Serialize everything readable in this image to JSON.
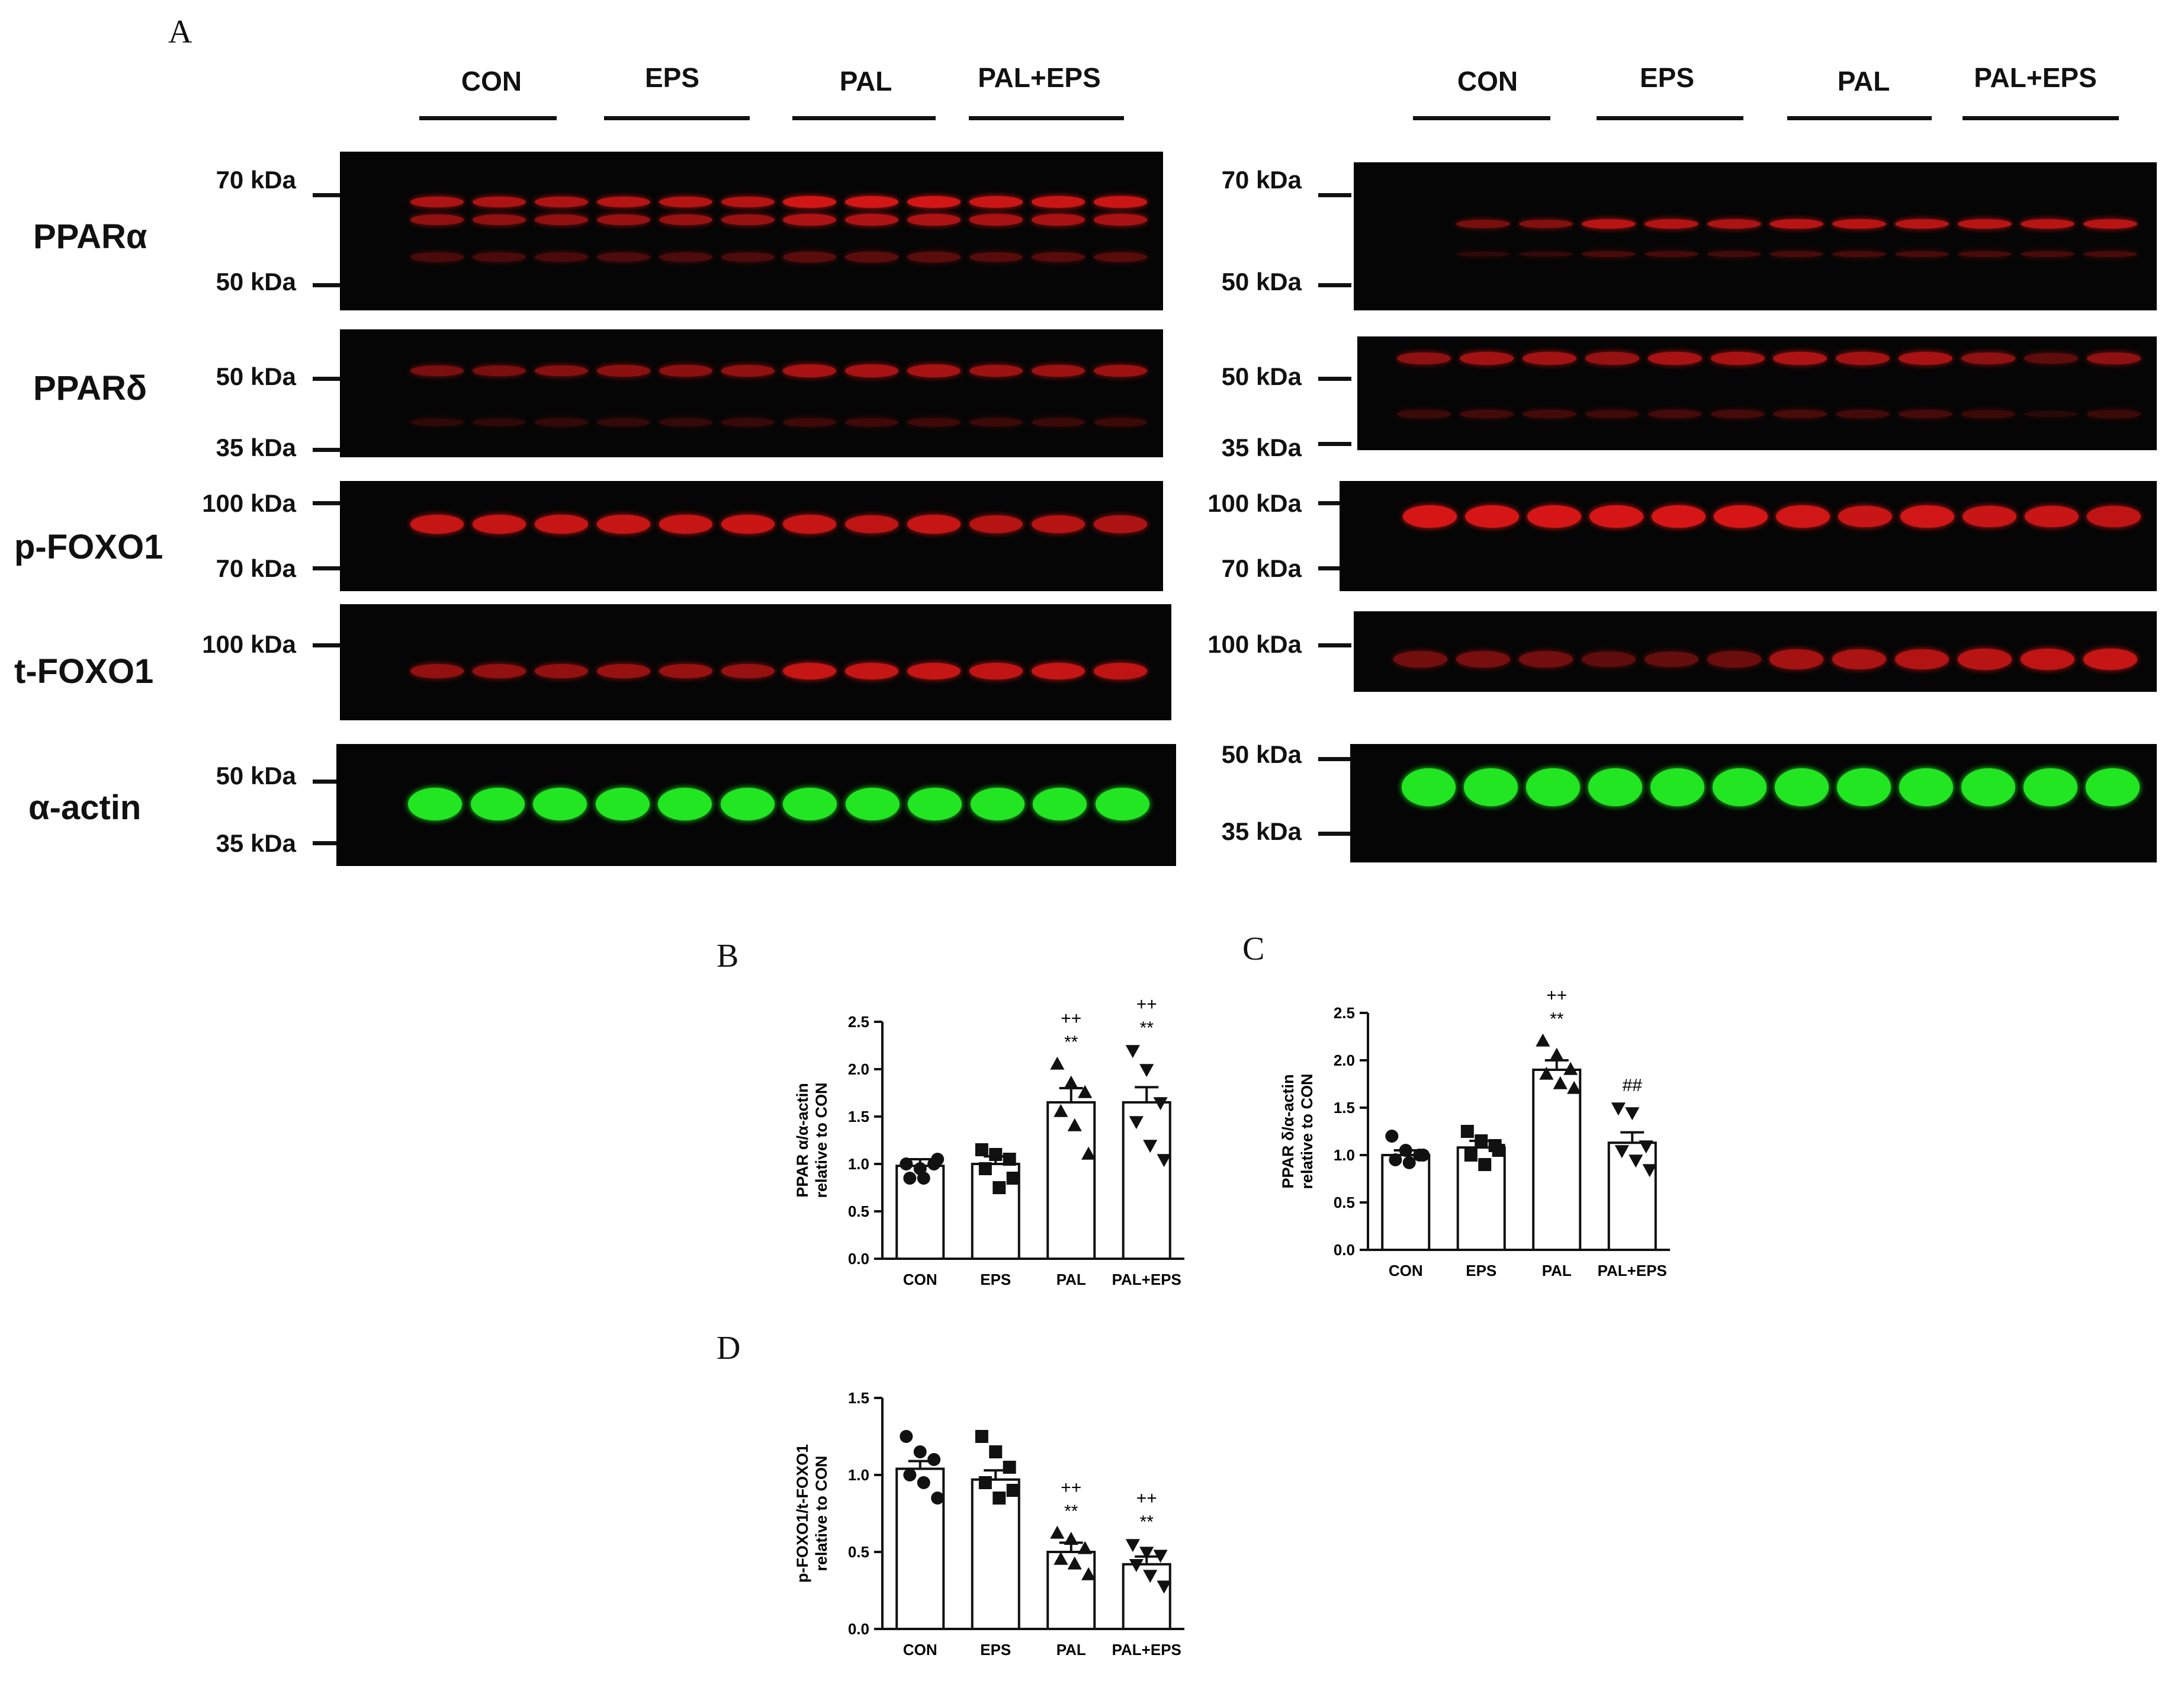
{
  "figure": {
    "panel_labels": {
      "a": "A",
      "b": "B",
      "c": "C",
      "d": "D"
    },
    "groups": [
      "CON",
      "EPS",
      "PAL",
      "PAL+EPS"
    ],
    "blot_rows": [
      {
        "protein": "PPARα",
        "markers": [
          "70 kDa",
          "50 kDa"
        ],
        "color": "#ff1a1a"
      },
      {
        "protein": "PPARδ",
        "markers": [
          "50 kDa",
          "35 kDa"
        ],
        "color": "#ff1a1a"
      },
      {
        "protein": "p-FOXO1",
        "markers": [
          "100 kDa",
          "70 kDa"
        ],
        "color": "#ff1a1a"
      },
      {
        "protein": "t-FOXO1",
        "markers": [
          "100 kDa"
        ],
        "color": "#ff1a1a"
      },
      {
        "protein": "α-actin",
        "markers": [
          "50 kDa",
          "35 kDa"
        ],
        "color": "#22e622"
      }
    ]
  },
  "chart_data": [
    {
      "panel": "B",
      "type": "bar",
      "categories": [
        "CON",
        "EPS",
        "PAL",
        "PAL+EPS"
      ],
      "values": [
        0.98,
        1.0,
        1.65,
        1.65
      ],
      "sem": [
        0.07,
        0.08,
        0.15,
        0.16
      ],
      "points": [
        [
          1.0,
          0.95,
          1.0,
          0.85,
          0.85,
          1.05
        ],
        [
          1.15,
          1.1,
          1.05,
          0.95,
          0.75,
          0.85
        ],
        [
          2.05,
          1.85,
          1.75,
          1.55,
          1.4,
          1.1
        ],
        [
          2.2,
          2.0,
          1.65,
          1.45,
          1.2,
          1.05
        ]
      ],
      "markers": [
        "circle",
        "square",
        "triangle-up",
        "triangle-down"
      ],
      "annotations": [
        "",
        "",
        "++\n**",
        "++\n**"
      ],
      "ylabel_line1": "PPAR α/α-actin",
      "ylabel_line2": "relative to CON",
      "ylim": [
        0,
        2.5
      ],
      "yticks": [
        "0.0",
        "0.5",
        "1.0",
        "1.5",
        "2.0",
        "2.5"
      ]
    },
    {
      "panel": "C",
      "type": "bar",
      "categories": [
        "CON",
        "EPS",
        "PAL",
        "PAL+EPS"
      ],
      "values": [
        1.0,
        1.08,
        1.9,
        1.13
      ],
      "sem": [
        0.05,
        0.07,
        0.1,
        0.11
      ],
      "points": [
        [
          1.2,
          1.05,
          1.0,
          0.95,
          0.92,
          1.0
        ],
        [
          1.25,
          1.15,
          1.1,
          1.0,
          0.9,
          1.05
        ],
        [
          2.2,
          2.05,
          1.9,
          1.85,
          1.75,
          1.7
        ],
        [
          1.5,
          1.45,
          1.1,
          1.05,
          0.95,
          0.85
        ]
      ],
      "markers": [
        "circle",
        "square",
        "triangle-up",
        "triangle-down"
      ],
      "annotations": [
        "",
        "",
        "++\n**",
        "##"
      ],
      "ylabel_line1": "PPAR δ/α-actin",
      "ylabel_line2": "relative to CON",
      "ylim": [
        0,
        2.5
      ],
      "yticks": [
        "0.0",
        "0.5",
        "1.0",
        "1.5",
        "2.0",
        "2.5"
      ]
    },
    {
      "panel": "D",
      "type": "bar",
      "categories": [
        "CON",
        "EPS",
        "PAL",
        "PAL+EPS"
      ],
      "values": [
        1.04,
        0.97,
        0.5,
        0.42
      ],
      "sem": [
        0.05,
        0.06,
        0.06,
        0.05
      ],
      "points": [
        [
          1.25,
          1.15,
          1.1,
          1.0,
          0.95,
          0.85
        ],
        [
          1.25,
          1.15,
          1.05,
          0.95,
          0.85,
          0.9
        ],
        [
          0.62,
          0.58,
          0.52,
          0.45,
          0.42,
          0.35
        ],
        [
          0.55,
          0.5,
          0.48,
          0.42,
          0.35,
          0.28
        ]
      ],
      "markers": [
        "circle",
        "square",
        "triangle-up",
        "triangle-down"
      ],
      "annotations": [
        "",
        "",
        "++\n**",
        "++\n**"
      ],
      "ylabel_line1": "p-FOXO1/t-FOXO1",
      "ylabel_line2": "relative to CON",
      "ylim": [
        0,
        1.5
      ],
      "yticks": [
        "0.0",
        "0.5",
        "1.0",
        "1.5"
      ]
    }
  ]
}
